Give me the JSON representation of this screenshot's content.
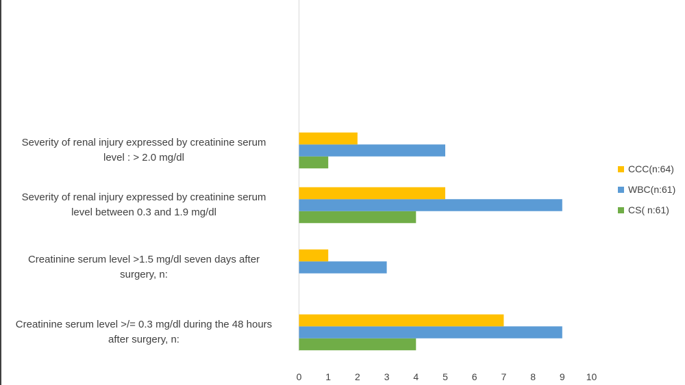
{
  "chart_data": {
    "type": "bar",
    "orientation": "horizontal",
    "categories": [
      [
        "Creatinine serum level >/= 0.3 mg/dl during the 48 hours",
        "after surgery, n:"
      ],
      [
        "Creatinine serum level >1.5 mg/dl seven days after",
        "surgery, n:"
      ],
      [
        "Severity of renal injury expressed by creatinine serum",
        "level between 0.3 and 1.9 mg/dl"
      ],
      [
        "Severity of renal injury expressed by creatinine serum",
        "level : > 2.0 mg/dl"
      ]
    ],
    "series": [
      {
        "name": "CS( n:61)",
        "color": "#70ad47",
        "values": [
          4,
          0,
          4,
          1
        ]
      },
      {
        "name": "WBC(n:61)",
        "color": "#5b9bd5",
        "values": [
          9,
          3,
          9,
          5
        ]
      },
      {
        "name": "CCC(n:64)",
        "color": "#ffc000",
        "values": [
          7,
          1,
          5,
          2
        ]
      }
    ],
    "xlim": [
      0,
      10
    ],
    "xticks": [
      "0",
      "1",
      "2",
      "3",
      "4",
      "5",
      "6",
      "7",
      "8",
      "9",
      "10"
    ],
    "legend_position": "right",
    "grid": false
  }
}
